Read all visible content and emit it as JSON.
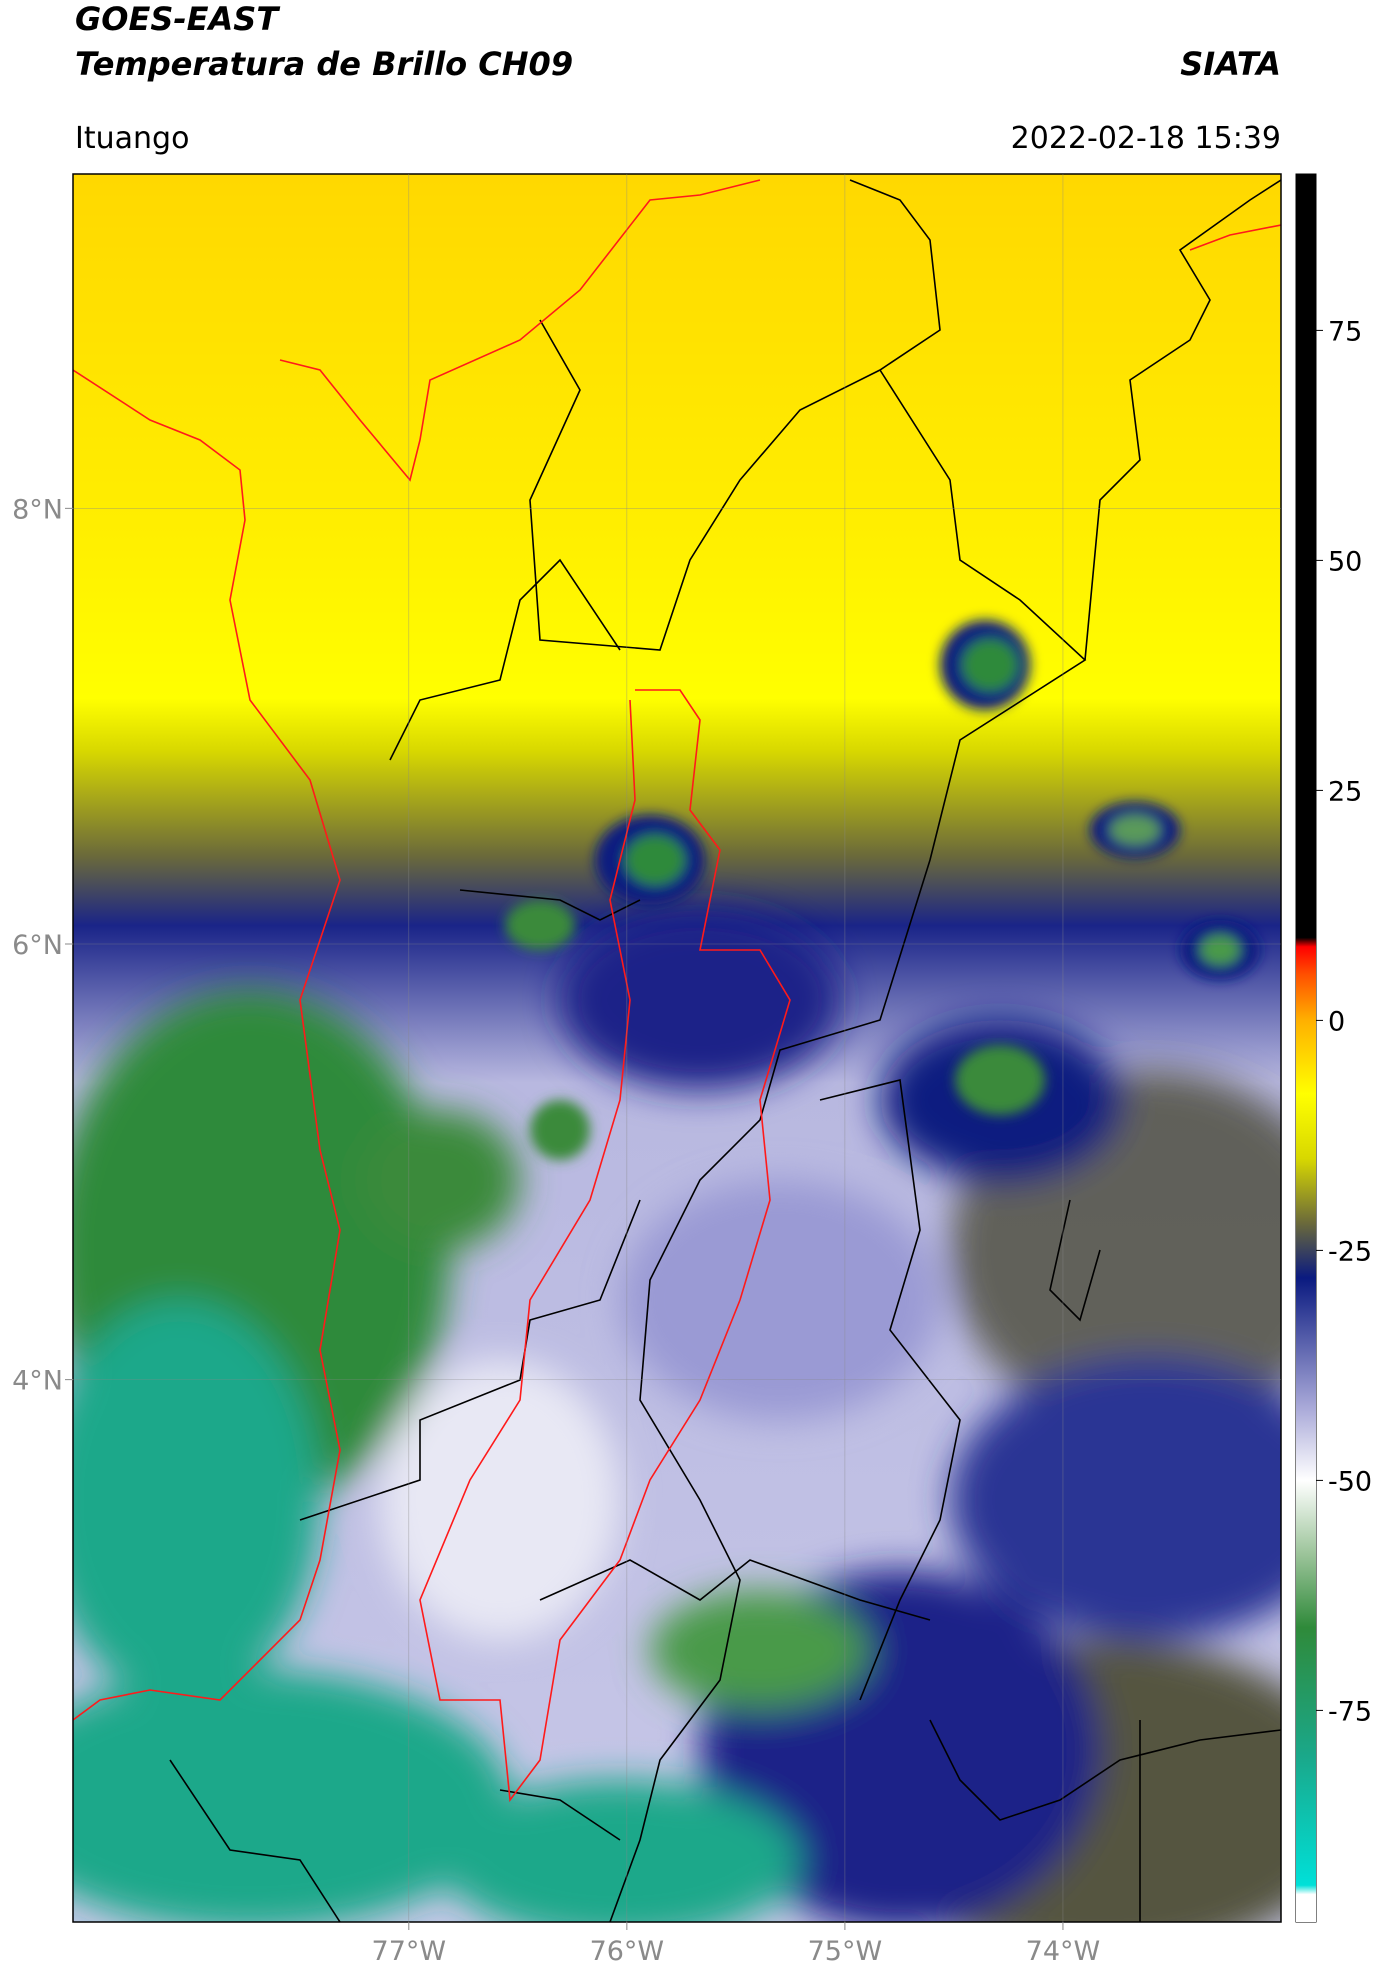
{
  "header": {
    "title": "GOES-EAST",
    "subtitle": "Temperatura de Brillo CH09",
    "source": "SIATA",
    "location": "Ituango",
    "timestamp": "2022-02-18 15:39"
  },
  "map": {
    "xlim": [
      -78.54,
      -73.0
    ],
    "ylim": [
      1.51,
      9.535
    ],
    "xticks": [
      {
        "value": -77,
        "label": "77°W"
      },
      {
        "value": -76,
        "label": "76°W"
      },
      {
        "value": -75,
        "label": "75°W"
      },
      {
        "value": -74,
        "label": "74°W"
      }
    ],
    "yticks": [
      {
        "value": 8,
        "label": "8°N"
      },
      {
        "value": 6,
        "label": "6°N"
      },
      {
        "value": 4,
        "label": "4°N"
      }
    ],
    "grid": true
  },
  "colorbar": {
    "lim": [
      -98,
      92
    ],
    "ticks": [
      75,
      50,
      25,
      0,
      -25,
      -50,
      -75
    ],
    "colormap": [
      {
        "value": -98,
        "color": "#ffffff"
      },
      {
        "value": -95,
        "color": "#ffffff"
      },
      {
        "value": -94,
        "color": "#00e0d8"
      },
      {
        "value": -80,
        "color": "#1aa88a"
      },
      {
        "value": -66,
        "color": "#2f8a3a"
      },
      {
        "value": -58,
        "color": "#9cc49a"
      },
      {
        "value": -50,
        "color": "#ffffff"
      },
      {
        "value": -42,
        "color": "#a8a8d8"
      },
      {
        "value": -28,
        "color": "#0a1a80"
      },
      {
        "value": -22,
        "color": "#6b6a3a"
      },
      {
        "value": -15,
        "color": "#d8d800"
      },
      {
        "value": -8,
        "color": "#ffff00"
      },
      {
        "value": 0,
        "color": "#ffb000"
      },
      {
        "value": 5,
        "color": "#ff5000"
      },
      {
        "value": 8,
        "color": "#ff0000"
      },
      {
        "value": 9,
        "color": "#000000"
      },
      {
        "value": 92,
        "color": "#000000"
      }
    ]
  }
}
